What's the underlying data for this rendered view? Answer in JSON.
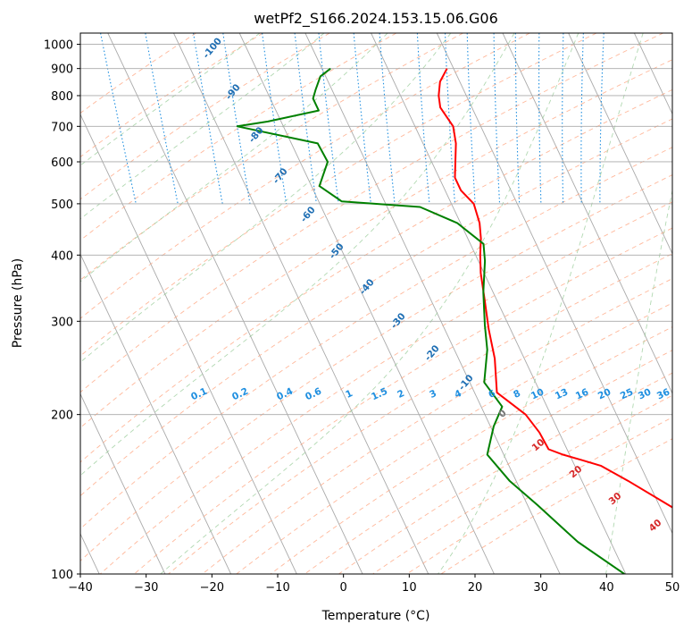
{
  "chart_data": {
    "type": "line",
    "title": "wetPf2_S166.2024.153.15.06.G06",
    "xlabel": "Temperature (°C)",
    "ylabel": "Pressure (hPa)",
    "xlim": [
      -40,
      50
    ],
    "ylim": [
      1050,
      100
    ],
    "y_scale": "log",
    "grid": true,
    "x_ticks": [
      -40,
      -30,
      -20,
      -10,
      0,
      10,
      20,
      30,
      40,
      50
    ],
    "y_ticks": [
      100,
      200,
      300,
      400,
      500,
      600,
      700,
      800,
      900,
      1000
    ],
    "temperature": {
      "color": "#ff0000",
      "points": [
        {
          "t": 9.0,
          "p": 900
        },
        {
          "t": 7.0,
          "p": 850
        },
        {
          "t": 5.8,
          "p": 800
        },
        {
          "t": 5.2,
          "p": 760
        },
        {
          "t": 5.8,
          "p": 700
        },
        {
          "t": 5.0,
          "p": 650
        },
        {
          "t": 3.6,
          "p": 600
        },
        {
          "t": 2.4,
          "p": 560
        },
        {
          "t": 2.4,
          "p": 530
        },
        {
          "t": 3.4,
          "p": 500
        },
        {
          "t": 2.9,
          "p": 460
        },
        {
          "t": 2.0,
          "p": 430
        },
        {
          "t": 0.7,
          "p": 400
        },
        {
          "t": -0.5,
          "p": 370
        },
        {
          "t": -1.8,
          "p": 330
        },
        {
          "t": -3.3,
          "p": 290
        },
        {
          "t": -4.5,
          "p": 255
        },
        {
          "t": -6.6,
          "p": 220
        },
        {
          "t": -3.8,
          "p": 200
        },
        {
          "t": -3.0,
          "p": 185
        },
        {
          "t": -2.8,
          "p": 172
        },
        {
          "t": -1.0,
          "p": 168
        },
        {
          "t": 1.5,
          "p": 164
        },
        {
          "t": 4.0,
          "p": 160
        },
        {
          "t": 7.0,
          "p": 150
        },
        {
          "t": 13.0,
          "p": 130
        },
        {
          "t": 19.0,
          "p": 110
        },
        {
          "t": 20.7,
          "p": 100
        }
      ]
    },
    "dewpoint": {
      "color": "#008000",
      "points": [
        {
          "t": -8.7,
          "p": 900
        },
        {
          "t": -10.8,
          "p": 870
        },
        {
          "t": -12.5,
          "p": 820
        },
        {
          "t": -13.5,
          "p": 790
        },
        {
          "t": -13.5,
          "p": 750
        },
        {
          "t": -22.0,
          "p": 715
        },
        {
          "t": -27.0,
          "p": 700
        },
        {
          "t": -16.0,
          "p": 650
        },
        {
          "t": -15.8,
          "p": 600
        },
        {
          "t": -18.8,
          "p": 540
        },
        {
          "t": -16.5,
          "p": 505
        },
        {
          "t": -5.0,
          "p": 493
        },
        {
          "t": -0.5,
          "p": 460
        },
        {
          "t": 2.0,
          "p": 420
        },
        {
          "t": 1.0,
          "p": 390
        },
        {
          "t": -1.5,
          "p": 340
        },
        {
          "t": -3.6,
          "p": 295
        },
        {
          "t": -5.0,
          "p": 265
        },
        {
          "t": -7.8,
          "p": 230
        },
        {
          "t": -6.8,
          "p": 207
        },
        {
          "t": -9.5,
          "p": 190
        },
        {
          "t": -12.5,
          "p": 168
        },
        {
          "t": -11.0,
          "p": 150
        },
        {
          "t": -8.5,
          "p": 135
        },
        {
          "t": -5.0,
          "p": 115
        },
        {
          "t": -0.2,
          "p": 100
        }
      ]
    },
    "dry_adiabat_labels": [
      "-100",
      "-90",
      "-80",
      "-70",
      "-60",
      "-50",
      "-40",
      "-30",
      "-20",
      "-10"
    ],
    "mixing_ratio_labels": [
      "0.1",
      "0.2",
      "0.4",
      "0.6",
      "1",
      "1.5",
      "2",
      "3",
      "4",
      "6",
      "8",
      "10",
      "13",
      "16",
      "20",
      "25",
      "30",
      "36"
    ],
    "moist_adiabat_labels": [
      "0",
      "10",
      "20",
      "30",
      "40"
    ]
  }
}
